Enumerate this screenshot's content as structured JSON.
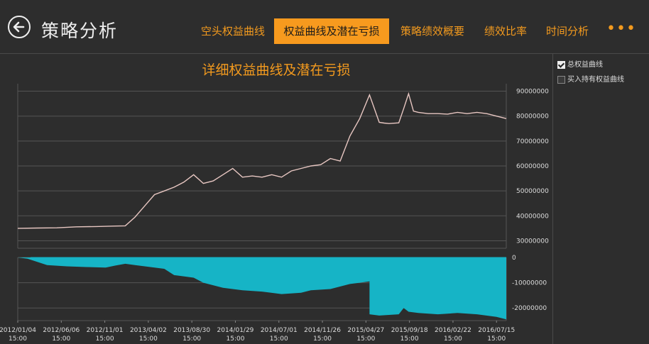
{
  "app": {
    "title": "策略分析"
  },
  "tabs": [
    {
      "label": "空头权益曲线",
      "active": false
    },
    {
      "label": "权益曲线及潜在亏损",
      "active": true
    },
    {
      "label": "策略绩效概要",
      "active": false
    },
    {
      "label": "绩效比率",
      "active": false
    },
    {
      "label": "时间分析",
      "active": false
    }
  ],
  "more_label": "•••",
  "legend": {
    "items": [
      {
        "label": "总权益曲线",
        "checked": true
      },
      {
        "label": "买入持有权益曲线",
        "checked": false
      }
    ]
  },
  "colors": {
    "accent": "#f79a1e",
    "equity_line": "#e8c7c2",
    "drawdown_fill": "#16b4c6",
    "background": "#2d2d2d",
    "grid": "#555555"
  },
  "chart_data": {
    "type": "line",
    "title": "详细权益曲线及潜在亏损",
    "x_ticks": [
      "2012/01/04 15:00",
      "2012/06/06 15:00",
      "2012/11/01 15:00",
      "2013/04/02 15:00",
      "2013/08/30 15:00",
      "2014/01/29 15:00",
      "2014/07/01 15:00",
      "2014/11/26 15:00",
      "2015/04/27 15:00",
      "2015/09/18 15:00",
      "2016/02/22 15:00",
      "2016/07/15 15:00"
    ],
    "equity": {
      "name": "总权益曲线",
      "ylim": [
        27000000,
        93000000
      ],
      "y_ticks": [
        30000000,
        40000000,
        50000000,
        60000000,
        70000000,
        80000000,
        90000000
      ],
      "x": [
        0,
        0.04,
        0.08,
        0.12,
        0.16,
        0.2,
        0.22,
        0.24,
        0.26,
        0.28,
        0.3,
        0.32,
        0.34,
        0.36,
        0.38,
        0.4,
        0.42,
        0.44,
        0.46,
        0.48,
        0.5,
        0.52,
        0.54,
        0.56,
        0.58,
        0.6,
        0.62,
        0.64,
        0.66,
        0.68,
        0.7,
        0.72,
        0.74,
        0.75,
        0.76,
        0.78,
        0.79,
        0.8,
        0.81,
        0.82,
        0.84,
        0.86,
        0.88,
        0.9,
        0.92,
        0.94,
        0.96,
        0.98,
        1.0
      ],
      "values": [
        35000000,
        35100000,
        35200000,
        35600000,
        35700000,
        35900000,
        36000000,
        39500000,
        44000000,
        48500000,
        50000000,
        51500000,
        53500000,
        56500000,
        53000000,
        54000000,
        56500000,
        59000000,
        55500000,
        56000000,
        55500000,
        56500000,
        55500000,
        58000000,
        59000000,
        60000000,
        60500000,
        63000000,
        62000000,
        72000000,
        79000000,
        88500000,
        77500000,
        77200000,
        77000000,
        77300000,
        83000000,
        89000000,
        82000000,
        81500000,
        81000000,
        81000000,
        80800000,
        81500000,
        81000000,
        81500000,
        81000000,
        80000000,
        79000000
      ]
    },
    "drawdown": {
      "name": "潜在亏损",
      "ylim": [
        -25000000,
        0
      ],
      "y_ticks": [
        0,
        -10000000,
        -20000000
      ],
      "x": [
        0,
        0.02,
        0.06,
        0.1,
        0.14,
        0.18,
        0.2,
        0.22,
        0.24,
        0.26,
        0.3,
        0.32,
        0.36,
        0.38,
        0.42,
        0.46,
        0.5,
        0.54,
        0.58,
        0.6,
        0.64,
        0.68,
        0.7,
        0.72,
        0.72,
        0.74,
        0.78,
        0.79,
        0.8,
        0.82,
        0.86,
        0.9,
        0.94,
        0.98,
        1.0
      ],
      "values": [
        0,
        -500000,
        -3000000,
        -3500000,
        -3800000,
        -4000000,
        -3200000,
        -2500000,
        -3000000,
        -3500000,
        -4500000,
        -7000000,
        -8000000,
        -10000000,
        -12000000,
        -13000000,
        -13500000,
        -14500000,
        -14000000,
        -13000000,
        -12500000,
        -10500000,
        -10000000,
        -9500000,
        -22500000,
        -23000000,
        -22500000,
        -20000000,
        -21500000,
        -22000000,
        -22500000,
        -22000000,
        -22500000,
        -23500000,
        -24500000
      ]
    }
  }
}
